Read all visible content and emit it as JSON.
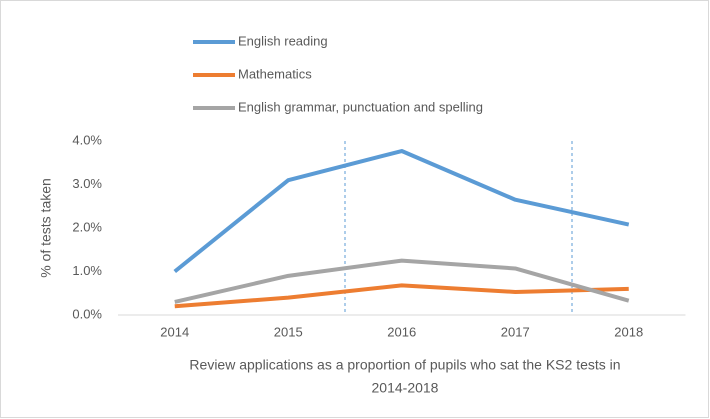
{
  "chart_data": {
    "type": "line",
    "ylabel": "% of tests taken",
    "xlabel": [
      "Review applications as a proportion of pupils who sat the KS2 tests in",
      "2014-2018"
    ],
    "categories": [
      "2014",
      "2015",
      "2016",
      "2017",
      "2018"
    ],
    "series": [
      {
        "name": "English reading",
        "color": "#5b9bd5",
        "values": [
          1.0,
          3.1,
          3.77,
          2.65,
          2.08
        ]
      },
      {
        "name": "Mathematics",
        "color": "#ed7d31",
        "values": [
          0.2,
          0.4,
          0.68,
          0.53,
          0.6
        ]
      },
      {
        "name": "English grammar, punctuation and spelling",
        "color": "#a5a5a5",
        "values": [
          0.3,
          0.9,
          1.25,
          1.07,
          0.33
        ]
      }
    ],
    "ylim": [
      0,
      4.0
    ],
    "yticks": [
      {
        "value": 0,
        "label": "0.0%"
      },
      {
        "value": 1.0,
        "label": "1.0%"
      },
      {
        "value": 2.0,
        "label": "2.0%"
      },
      {
        "value": 3.0,
        "label": "3.0%"
      },
      {
        "value": 4.0,
        "label": "4.0%"
      }
    ],
    "legend": "top-left"
  }
}
